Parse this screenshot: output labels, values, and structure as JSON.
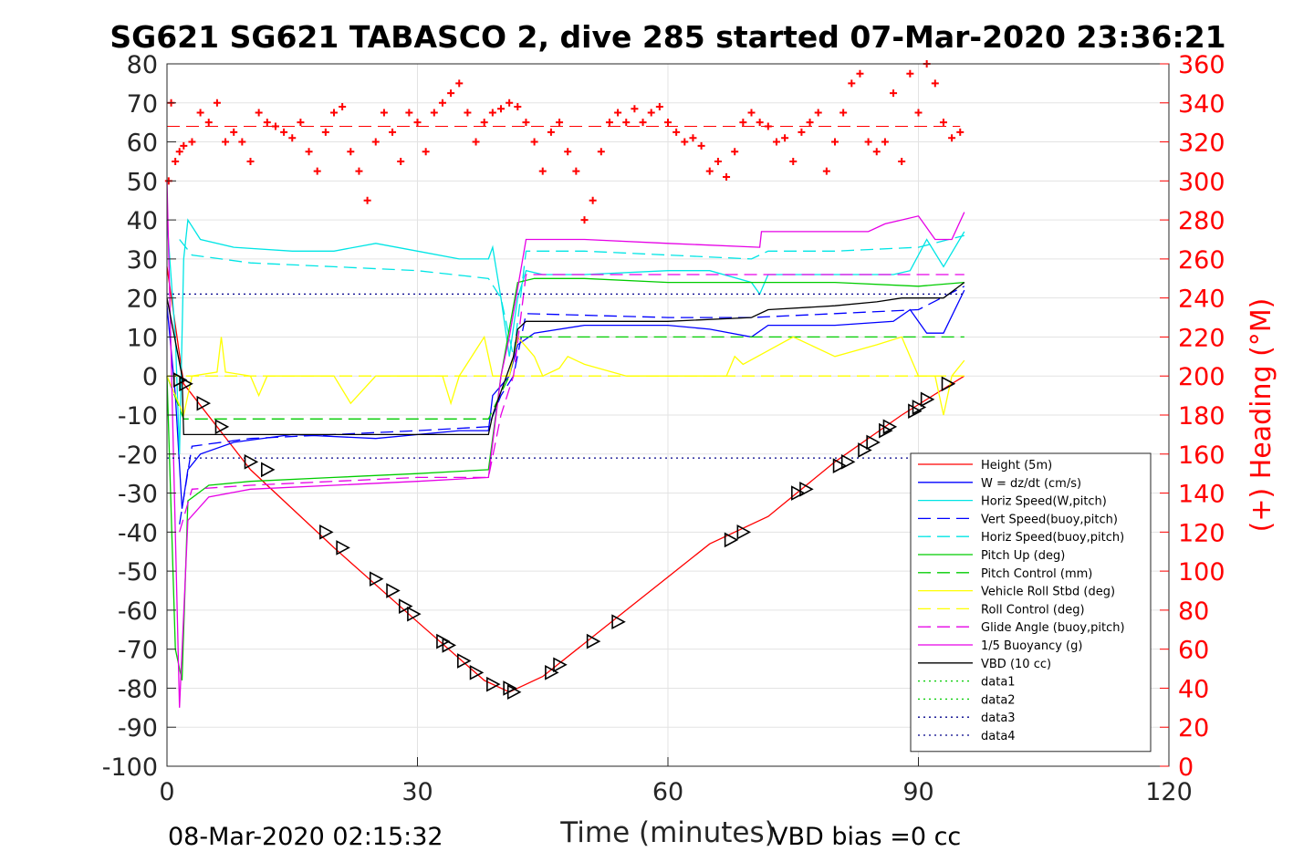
{
  "chart_data": {
    "type": "line",
    "title": "SG621 SG621 TABASCO 2, dive 285 started 07-Mar-2020 23:36:21",
    "xlabel": "Time (minutes)",
    "ylabel_right": "(+) Heading (°M)",
    "xlim": [
      0,
      120
    ],
    "ylim": [
      -100,
      80
    ],
    "y2lim": [
      0,
      360
    ],
    "x_ticks": [
      0,
      30,
      60,
      90,
      120
    ],
    "y_ticks": [
      80,
      70,
      60,
      50,
      40,
      30,
      20,
      10,
      0,
      -10,
      -20,
      -30,
      -40,
      -50,
      -60,
      -70,
      -80,
      -90,
      -100
    ],
    "y2_ticks": [
      360,
      340,
      320,
      300,
      280,
      260,
      240,
      220,
      200,
      180,
      160,
      140,
      120,
      100,
      80,
      60,
      40,
      20,
      0
    ],
    "grid": true,
    "legend_position": "bottom-right",
    "footer_left": "08-Mar-2020 02:15:32",
    "footer_right": "VBD bias =0 cc",
    "series": [
      {
        "name": "Height (5m)",
        "color": "#ff0000",
        "dash": "solid",
        "x": [
          0,
          2,
          10,
          20,
          30,
          38,
          41,
          45,
          55,
          65,
          72,
          80,
          88,
          95.5
        ],
        "y": [
          28,
          -2,
          -24,
          -44,
          -63,
          -78,
          -81,
          -77,
          -60,
          -43,
          -36,
          -22,
          -10,
          0
        ]
      },
      {
        "name": "W = dz/dt (cm/s)",
        "color": "#0000ff",
        "dash": "solid",
        "x": [
          0,
          1,
          1.8,
          2.5,
          4,
          8,
          15,
          25,
          35,
          38.5,
          39,
          41,
          42,
          44,
          50,
          60,
          65,
          70,
          72,
          80,
          87,
          89,
          91,
          93,
          95.5
        ],
        "y": [
          18,
          -5,
          -34,
          -24,
          -20,
          -17,
          -15,
          -16,
          -14,
          -14,
          -5,
          0,
          8,
          11,
          13,
          13,
          12,
          10,
          13,
          13,
          14,
          17,
          11,
          11,
          22
        ]
      },
      {
        "name": "Horiz Speed(W,pitch)",
        "color": "#00e5e5",
        "dash": "solid",
        "x": [
          0,
          1,
          1.5,
          2,
          2.5,
          4,
          8,
          15,
          20,
          25,
          30,
          35,
          38.5,
          39,
          40,
          41,
          42,
          43,
          45,
          50,
          60,
          65,
          70,
          71,
          72,
          80,
          87,
          89,
          91,
          93,
          95.5
        ],
        "y": [
          40,
          10,
          -20,
          30,
          40,
          35,
          33,
          32,
          32,
          34,
          32,
          30,
          30,
          33,
          20,
          5,
          20,
          27,
          26,
          26,
          27,
          27,
          24,
          21,
          26,
          26,
          26,
          27,
          35,
          28,
          37
        ]
      },
      {
        "name": "Vert Speed(buoy,pitch)",
        "color": "#0000ff",
        "dash": "long",
        "x": [
          1.5,
          3,
          10,
          20,
          30,
          38.5,
          40,
          41.5,
          43,
          60,
          70,
          80,
          90,
          95.5
        ],
        "y": [
          -38,
          -18,
          -16,
          -15,
          -14,
          -13,
          -5,
          0,
          16,
          15,
          15,
          16,
          17,
          23
        ]
      },
      {
        "name": "Horiz Speed(buoy,pitch)",
        "color": "#00e5e5",
        "dash": "long",
        "x": [
          1.5,
          3,
          10,
          20,
          30,
          38.5,
          40,
          41.5,
          43,
          50,
          60,
          70,
          72,
          80,
          90,
          95.5
        ],
        "y": [
          35,
          31,
          29,
          28,
          27,
          25,
          20,
          5,
          32,
          32,
          31,
          30,
          32,
          32,
          33,
          36
        ]
      },
      {
        "name": "Pitch Up (deg)",
        "color": "#00cc00",
        "dash": "solid",
        "x": [
          0,
          1,
          1.8,
          2.5,
          5,
          10,
          20,
          30,
          38.5,
          40,
          42,
          44,
          50,
          60,
          70,
          80,
          90,
          95.5
        ],
        "y": [
          0,
          -70,
          -78,
          -32,
          -28,
          -27,
          -26,
          -25,
          -24,
          0,
          24,
          25,
          25,
          24,
          24,
          24,
          23,
          24
        ]
      },
      {
        "name": "Pitch Control (mm)",
        "color": "#00cc00",
        "dash": "long",
        "x": [
          0,
          2,
          10,
          20,
          30,
          38.5,
          41,
          42,
          60,
          80,
          95.5
        ],
        "y": [
          0,
          -11,
          -11,
          -11,
          -11,
          -11,
          0,
          10,
          10,
          10,
          10
        ]
      },
      {
        "name": "Vehicle Roll Stbd (deg)",
        "color": "#ffff00",
        "dash": "solid",
        "x": [
          0,
          2,
          3,
          6,
          6.5,
          7,
          10,
          11,
          12,
          20,
          22,
          25,
          30,
          33,
          34,
          35,
          38,
          39,
          40,
          41,
          42,
          44,
          45,
          47,
          48,
          50,
          55,
          60,
          67,
          68,
          69,
          75,
          80,
          85,
          88,
          90,
          92,
          93,
          94,
          95.5
        ],
        "y": [
          0,
          -10,
          0,
          1,
          10,
          1,
          0,
          -5,
          0,
          0,
          -7,
          0,
          0,
          0,
          -7,
          0,
          10,
          0,
          0,
          0,
          10,
          5,
          0,
          2,
          5,
          3,
          0,
          0,
          0,
          5,
          3,
          10,
          5,
          8,
          10,
          0,
          0,
          -10,
          0,
          4
        ]
      },
      {
        "name": "Roll Control (deg)",
        "color": "#ffff00",
        "dash": "long",
        "x": [
          0,
          95.5
        ],
        "y": [
          0,
          0
        ]
      },
      {
        "name": "Glide Angle (buoy,pitch)",
        "color": "#e600e6",
        "dash": "long",
        "x": [
          1.5,
          3,
          10,
          20,
          30,
          38.5,
          40,
          41.5,
          43,
          60,
          80,
          90,
          95.5
        ],
        "y": [
          -40,
          -29,
          -28,
          -27,
          -26,
          -26,
          -10,
          0,
          26,
          26,
          26,
          26,
          26
        ]
      },
      {
        "name": "1/5 Buoyancy (g)",
        "color": "#e600e6",
        "dash": "solid",
        "x": [
          0,
          1.5,
          2.5,
          5,
          10,
          20,
          30,
          38.5,
          40,
          41,
          43,
          50,
          60,
          71,
          71.2,
          80,
          84,
          86,
          88,
          90,
          92,
          94,
          95.5
        ],
        "y": [
          50,
          -85,
          -37,
          -31,
          -29,
          -28,
          -27,
          -26,
          0,
          10,
          35,
          35,
          34,
          33,
          37,
          37,
          37,
          39,
          40,
          41,
          35,
          35,
          42
        ]
      },
      {
        "name": "VBD (10 cc)",
        "color": "#000000",
        "dash": "solid",
        "x": [
          0,
          1.8,
          2,
          10,
          20,
          30,
          38.5,
          39,
          41.5,
          42,
          43,
          50,
          60,
          70,
          72,
          80,
          85,
          88,
          90,
          93,
          95.5
        ],
        "y": [
          20,
          0,
          -15,
          -15,
          -15,
          -15,
          -15,
          -10,
          5,
          12,
          14,
          14,
          14,
          15,
          17,
          18,
          19,
          20,
          20,
          20,
          24
        ]
      },
      {
        "name": "data1",
        "color": "#00cc00",
        "dash": "dot",
        "x": [],
        "y": []
      },
      {
        "name": "data2",
        "color": "#00cc00",
        "dash": "dot",
        "x": [],
        "y": []
      },
      {
        "name": "data3",
        "color": "#00008b",
        "dash": "dot",
        "x": [
          0,
          95.5
        ],
        "y": [
          21,
          21
        ]
      },
      {
        "name": "data4",
        "color": "#00008b",
        "dash": "dot",
        "x": [
          0,
          95.5
        ],
        "y": [
          -21,
          -21
        ]
      }
    ],
    "heading_series": {
      "name": "(+) Heading",
      "color": "#ff0000",
      "marker": "+",
      "axis": "right",
      "mean_line_y2": 328,
      "x": [
        0.2,
        0.5,
        1,
        1.5,
        2,
        3,
        4,
        5,
        6,
        7,
        8,
        9,
        10,
        11,
        12,
        13,
        14,
        15,
        16,
        17,
        18,
        19,
        20,
        21,
        22,
        23,
        24,
        25,
        26,
        27,
        28,
        29,
        30,
        31,
        32,
        33,
        34,
        35,
        36,
        37,
        38,
        39,
        40,
        41,
        42,
        43,
        44,
        45,
        46,
        47,
        48,
        49,
        50,
        51,
        52,
        53,
        54,
        55,
        56,
        57,
        58,
        59,
        60,
        61,
        62,
        63,
        64,
        65,
        66,
        67,
        68,
        69,
        70,
        71,
        72,
        73,
        74,
        75,
        76,
        77,
        78,
        79,
        80,
        81,
        82,
        83,
        84,
        85,
        86,
        87,
        88,
        89,
        90,
        91,
        92,
        93,
        94,
        95
      ],
      "y": [
        300,
        340,
        310,
        315,
        318,
        320,
        335,
        330,
        340,
        320,
        325,
        320,
        310,
        335,
        330,
        328,
        325,
        322,
        330,
        315,
        305,
        325,
        335,
        338,
        315,
        305,
        290,
        320,
        335,
        325,
        310,
        335,
        330,
        315,
        335,
        340,
        345,
        350,
        335,
        320,
        330,
        335,
        337,
        340,
        338,
        330,
        320,
        305,
        325,
        330,
        315,
        305,
        280,
        290,
        315,
        330,
        335,
        330,
        337,
        330,
        335,
        338,
        330,
        325,
        320,
        322,
        318,
        305,
        310,
        302,
        315,
        330,
        335,
        330,
        328,
        320,
        322,
        310,
        325,
        330,
        335,
        305,
        320,
        335,
        350,
        355,
        320,
        315,
        320,
        345,
        310,
        355,
        335,
        360,
        350,
        330,
        322,
        325
      ]
    },
    "dive_markers": {
      "marker": "triangle",
      "color": "#000000",
      "x": [
        1.5,
        2.2,
        4.3,
        6.5,
        10,
        12,
        19,
        21,
        25,
        27,
        28.5,
        29.5,
        33,
        33.7,
        35.5,
        37,
        39,
        41,
        41.5,
        46,
        47,
        51,
        54,
        67.5,
        69,
        75.5,
        76.5,
        80.5,
        81.5,
        83.5,
        84.5,
        86,
        86.5,
        89.5,
        90,
        91,
        93.5
      ],
      "y": [
        -1,
        -2,
        -7,
        -13,
        -22,
        -24,
        -40,
        -44,
        -52,
        -55,
        -59,
        -61,
        -68,
        -69,
        -73,
        -76,
        -79,
        -80,
        -81,
        -76,
        -74,
        -68,
        -63,
        -42,
        -40,
        -30,
        -29,
        -23,
        -22,
        -19,
        -17,
        -14,
        -13,
        -9,
        -8,
        -6,
        -2
      ]
    }
  }
}
